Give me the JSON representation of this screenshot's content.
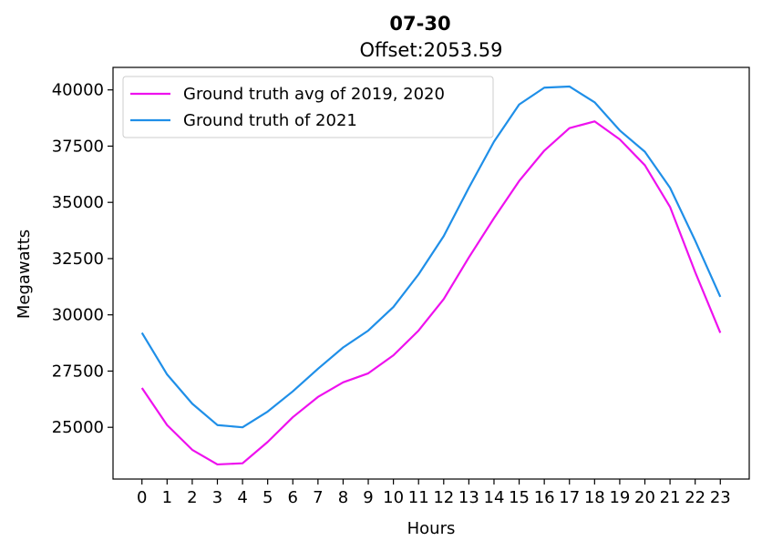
{
  "chart_data": {
    "type": "line",
    "title": "07-30",
    "subtitle": "Offset:2053.59",
    "xlabel": "Hours",
    "ylabel": "Megawatts",
    "x": [
      0,
      1,
      2,
      3,
      4,
      5,
      6,
      7,
      8,
      9,
      10,
      11,
      12,
      13,
      14,
      15,
      16,
      17,
      18,
      19,
      20,
      21,
      22,
      23
    ],
    "xlim": [
      -1.15,
      24.15
    ],
    "ylim": [
      22700,
      41000
    ],
    "yticks": [
      25000,
      27500,
      30000,
      32500,
      35000,
      37500,
      40000
    ],
    "grid": false,
    "legend_position": "top-left",
    "series": [
      {
        "name": "Ground truth avg of 2019, 2020",
        "color": "#ee11ee",
        "values": [
          26750,
          25100,
          24000,
          23350,
          23400,
          24350,
          25450,
          26350,
          27000,
          27400,
          28200,
          29300,
          30700,
          32550,
          34300,
          35950,
          37300,
          38300,
          38600,
          37800,
          36650,
          34800,
          31900,
          29200
        ]
      },
      {
        "name": "Ground truth of 2021",
        "color": "#1f8fe8",
        "values": [
          29200,
          27350,
          26050,
          25100,
          25000,
          25700,
          26600,
          27600,
          28550,
          29300,
          30350,
          31800,
          33500,
          35650,
          37700,
          39350,
          40100,
          40150,
          39450,
          38200,
          37250,
          35650,
          33300,
          30800
        ]
      }
    ]
  }
}
